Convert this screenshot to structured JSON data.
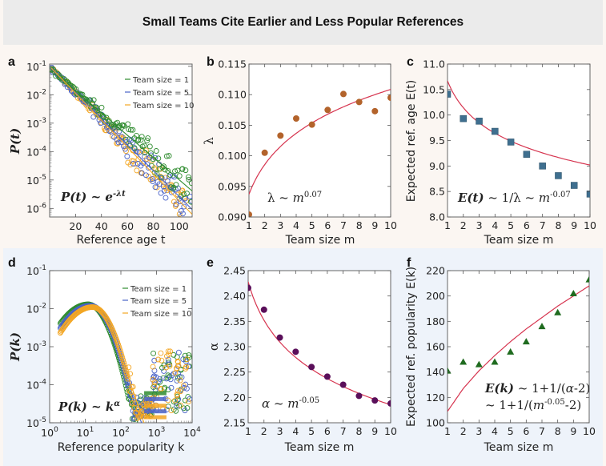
{
  "title": "Small Teams Cite Earlier and Less Popular References",
  "colors": {
    "banner": "#ebebeb",
    "row_top": "#fbf6f2",
    "row_bottom": "#eef3fa",
    "fit_line": "#d6344f",
    "team1": "#2e8b2e",
    "team5": "#4a63c8",
    "team10": "#f3a623",
    "panel_b_points": "#b3632b",
    "panel_c_points": "#3f6f8f",
    "panel_e_points": "#5a0f5a",
    "panel_f_points": "#1f6b1f"
  },
  "chart_data": [
    {
      "panel": "a",
      "type": "scatter",
      "xlabel": "Reference age t",
      "ylabel": "P(t)",
      "xscale": "linear",
      "yscale": "log",
      "xlim": [
        0,
        110
      ],
      "ylim": [
        5e-07,
        0.12
      ],
      "xticks": [
        "20",
        "40",
        "60",
        "80",
        "100"
      ],
      "xtick_values": [
        20,
        40,
        60,
        80,
        100
      ],
      "yticks": [
        "10-1",
        "10-2",
        "10-3",
        "10-4",
        "10-5",
        "10-6"
      ],
      "ytick_exponents": [
        -1,
        -2,
        -3,
        -4,
        -5,
        -6
      ],
      "legend": [
        "Team size = 1",
        "Team size = 5",
        "Team size = 10"
      ],
      "legend_position": "top-right",
      "annotation": "P(t) ~ e-λt",
      "series": [
        {
          "name": "Team size = 1",
          "color_key": "team1",
          "lambda": 0.0903,
          "p0": 0.085
        },
        {
          "name": "Team size = 5",
          "color_key": "team5",
          "lambda": 0.105,
          "p0": 0.095
        },
        {
          "name": "Team size = 10",
          "color_key": "team10",
          "lambda": 0.109,
          "p0": 0.1
        }
      ]
    },
    {
      "panel": "b",
      "type": "scatter",
      "xlabel": "Team size m",
      "ylabel": "λ",
      "xlim": [
        1,
        10
      ],
      "ylim": [
        0.09,
        0.115
      ],
      "xticks": [
        "1",
        "2",
        "3",
        "4",
        "5",
        "6",
        "7",
        "8",
        "9",
        "10"
      ],
      "yticks": [
        "0.115",
        "0.110",
        "0.105",
        "0.100",
        "0.095",
        "0.090"
      ],
      "ytick_values": [
        0.115,
        0.11,
        0.105,
        0.1,
        0.095,
        0.09
      ],
      "annotation": "λ ~ m0.07",
      "x": [
        1,
        2,
        3,
        4,
        5,
        6,
        7,
        8,
        9,
        10
      ],
      "values": [
        0.0904,
        0.1005,
        0.1033,
        0.1061,
        0.1051,
        0.1075,
        0.1101,
        0.1088,
        0.1073,
        0.1095
      ],
      "fit": {
        "form": "power",
        "coef": 0.0937,
        "exponent": 0.073
      }
    },
    {
      "panel": "c",
      "type": "scatter",
      "xlabel": "Team size m",
      "ylabel": "Expected ref. age E(t)",
      "xlim": [
        1,
        10
      ],
      "ylim": [
        8.0,
        11.0
      ],
      "xticks": [
        "1",
        "2",
        "3",
        "4",
        "5",
        "6",
        "7",
        "8",
        "9",
        "10"
      ],
      "yticks": [
        "11.0",
        "10.5",
        "10.0",
        "9.5",
        "9.0",
        "8.5",
        "8.0"
      ],
      "ytick_values": [
        11.0,
        10.5,
        10.0,
        9.5,
        9.0,
        8.5,
        8.0
      ],
      "annotation": "E(t) ~ 1/λ ~ m-0.07",
      "x": [
        1,
        2,
        3,
        4,
        5,
        6,
        7,
        8,
        9,
        10
      ],
      "values": [
        10.41,
        9.93,
        9.88,
        9.68,
        9.47,
        9.23,
        9.0,
        8.81,
        8.62,
        8.45
      ],
      "fit": {
        "form": "power",
        "coef": 10.67,
        "exponent": -0.073
      }
    },
    {
      "panel": "d",
      "type": "scatter",
      "xlabel": "Reference popularity k",
      "ylabel": "P(k)",
      "xscale": "log",
      "yscale": "log",
      "xlim": [
        1,
        10000
      ],
      "ylim": [
        1e-05,
        0.1
      ],
      "xticks": [
        "10^0",
        "10^1",
        "10^2",
        "10^3",
        "10^4"
      ],
      "xtick_exponents": [
        0,
        1,
        2,
        3,
        4
      ],
      "yticks": [
        "10-1",
        "10-2",
        "10-3",
        "10-4",
        "10-5"
      ],
      "ytick_exponents": [
        -1,
        -2,
        -3,
        -4,
        -5
      ],
      "legend": [
        "Team size = 1",
        "Team size = 5",
        "Team size = 10"
      ],
      "legend_position": "top-right",
      "annotation": "P(k) ~ kα",
      "series": [
        {
          "name": "Team size = 1",
          "color_key": "team1",
          "peak_k": 12,
          "peak_p": 0.013,
          "alpha": 2.42
        },
        {
          "name": "Team size = 5",
          "color_key": "team5",
          "peak_k": 14,
          "peak_p": 0.012,
          "alpha": 2.26
        },
        {
          "name": "Team size = 10",
          "color_key": "team10",
          "peak_k": 16,
          "peak_p": 0.011,
          "alpha": 2.19
        }
      ]
    },
    {
      "panel": "e",
      "type": "scatter",
      "xlabel": "Team size m",
      "ylabel": "α",
      "xlim": [
        1,
        10
      ],
      "ylim": [
        2.15,
        2.45
      ],
      "xticks": [
        "1",
        "2",
        "3",
        "4",
        "5",
        "6",
        "7",
        "8",
        "9",
        "10"
      ],
      "yticks": [
        "2.45",
        "2.40",
        "2.35",
        "2.30",
        "2.25",
        "2.20",
        "2.15"
      ],
      "ytick_values": [
        2.45,
        2.4,
        2.35,
        2.3,
        2.25,
        2.2,
        2.15
      ],
      "annotation": "α ~ m-0.05",
      "x": [
        1,
        2,
        3,
        4,
        5,
        6,
        7,
        8,
        9,
        10
      ],
      "values": [
        2.416,
        2.373,
        2.318,
        2.29,
        2.26,
        2.241,
        2.225,
        2.203,
        2.194,
        2.188
      ],
      "fit": {
        "form": "power",
        "coef": 2.428,
        "exponent": -0.0457
      }
    },
    {
      "panel": "f",
      "type": "scatter",
      "xlabel": "Team size m",
      "ylabel": "Expected ref. popularity E(k)",
      "xlim": [
        1,
        10
      ],
      "ylim": [
        100,
        220
      ],
      "xticks": [
        "1",
        "2",
        "3",
        "4",
        "5",
        "6",
        "7",
        "8",
        "9",
        "10"
      ],
      "yticks": [
        "220",
        "200",
        "180",
        "160",
        "140",
        "120",
        "100"
      ],
      "ytick_values": [
        220,
        200,
        180,
        160,
        140,
        120,
        100
      ],
      "annotation": [
        "E(k) ~ 1+1/(α-2)",
        "~ 1+1/(m-0.05-2)"
      ],
      "x": [
        1,
        2,
        3,
        4,
        5,
        6,
        7,
        8,
        9,
        10
      ],
      "values": [
        141,
        148,
        146,
        148,
        156,
        164,
        176,
        187,
        202,
        213
      ],
      "fit": {
        "values_at_x": [
          109,
          127,
          141,
          153,
          164,
          174,
          183,
          192,
          200,
          208
        ]
      }
    }
  ]
}
